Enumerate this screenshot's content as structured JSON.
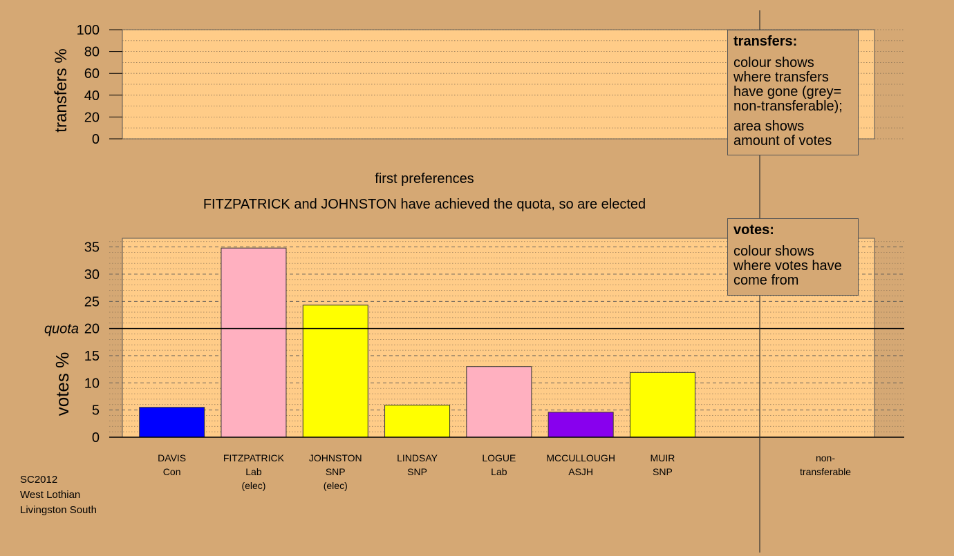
{
  "colors": {
    "background": "#d5a874",
    "plot_fill": "#ffcc88",
    "Con": "#0000ff",
    "Lab": "#ffb0c0",
    "SNP": "#ffff00",
    "ASJH": "#8800ee"
  },
  "transfer_legend": {
    "heading": "transfers:",
    "para1": "colour shows where transfers have gone (grey= non-transferable);",
    "para2": "area shows amount of votes"
  },
  "votes_legend": {
    "heading": "votes:",
    "para1": "colour shows where votes have come from"
  },
  "stage_title": "first preferences",
  "status_text": "FITZPATRICK and JOHNSTON have achieved the quota, so are elected",
  "footer": {
    "line1": "SC2012",
    "line2": "West Lothian",
    "line3": "Livingston South"
  },
  "chart_data": [
    {
      "type": "bar",
      "ylabel": "transfers %",
      "ylim": [
        0,
        100
      ],
      "yticks": [
        "0",
        "20",
        "40",
        "60",
        "80",
        "100"
      ],
      "values": []
    },
    {
      "type": "bar",
      "ylabel": "votes %",
      "ylim": [
        0,
        36.6
      ],
      "yticks": [
        "0",
        "5",
        "10",
        "15",
        "20",
        "25",
        "30",
        "35"
      ],
      "quota": 20,
      "quota_label": "quota",
      "categories": [
        {
          "name": "DAVIS",
          "party": "Con",
          "note": ""
        },
        {
          "name": "FITZPATRICK",
          "party": "Lab",
          "note": "(elec)"
        },
        {
          "name": "JOHNSTON",
          "party": "SNP",
          "note": "(elec)"
        },
        {
          "name": "LINDSAY",
          "party": "SNP",
          "note": ""
        },
        {
          "name": "LOGUE",
          "party": "Lab",
          "note": ""
        },
        {
          "name": "MCCULLOUGH",
          "party": "ASJH",
          "note": ""
        },
        {
          "name": "MUIR",
          "party": "SNP",
          "note": ""
        },
        {
          "name": "non-",
          "party": "transferable",
          "note": ""
        }
      ],
      "values": [
        5.5,
        34.8,
        24.3,
        5.9,
        13.0,
        4.6,
        11.9,
        0
      ]
    }
  ]
}
